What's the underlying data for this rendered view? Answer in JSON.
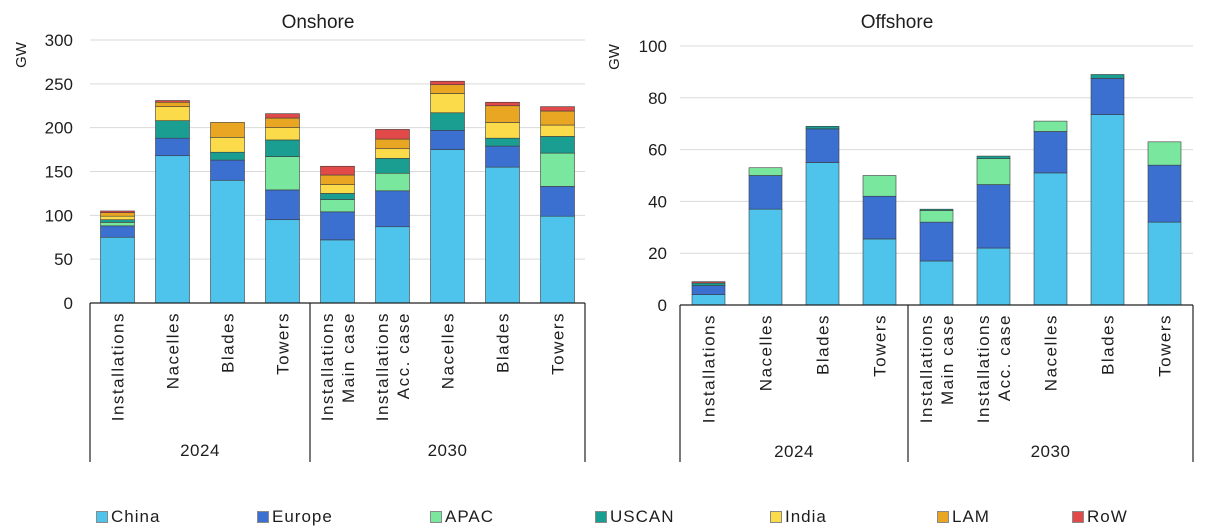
{
  "chart_data": [
    {
      "type": "bar",
      "stacked": true,
      "title": "Onshore",
      "ylabel": "GW",
      "ylim": [
        0,
        300
      ],
      "yticks": [
        0,
        50,
        100,
        150,
        200,
        250,
        300
      ],
      "grid": true,
      "legend": "bottom",
      "categories": [
        [
          "Installations"
        ],
        [
          "Nacelles"
        ],
        [
          "Blades"
        ],
        [
          "Towers"
        ],
        [
          "Installations",
          "Main case"
        ],
        [
          "Installations",
          "Acc. case"
        ],
        [
          "Nacelles"
        ],
        [
          "Blades"
        ],
        [
          "Towers"
        ]
      ],
      "groups": [
        {
          "label": "2024",
          "span": 4
        },
        {
          "label": "2030",
          "span": 5
        }
      ],
      "series": [
        {
          "name": "China",
          "color": "#4EC3EC",
          "values": [
            75,
            168,
            140,
            95,
            72,
            87,
            175,
            155,
            99
          ]
        },
        {
          "name": "Europe",
          "color": "#3B6FD0",
          "values": [
            13,
            20,
            23,
            34,
            32,
            41,
            22,
            24,
            34
          ]
        },
        {
          "name": "APAC",
          "color": "#7AE79E",
          "values": [
            4,
            0,
            0,
            38,
            14,
            20,
            0,
            0,
            38
          ]
        },
        {
          "name": "USCAN",
          "color": "#1A9E91",
          "values": [
            3,
            20,
            9,
            19,
            7,
            17,
            20,
            9,
            19
          ]
        },
        {
          "name": "India",
          "color": "#FBDB4A",
          "values": [
            4,
            16,
            17,
            14,
            10,
            11,
            22,
            18,
            13
          ]
        },
        {
          "name": "LAM",
          "color": "#E8A623",
          "values": [
            4,
            5,
            17,
            11,
            11,
            11,
            10,
            19,
            16
          ]
        },
        {
          "name": "RoW",
          "color": "#E24A4A",
          "values": [
            2,
            2,
            0,
            5,
            10,
            11,
            4,
            4,
            5
          ]
        }
      ]
    },
    {
      "type": "bar",
      "stacked": true,
      "title": "Offshore",
      "ylabel": "GW",
      "ylim": [
        0,
        100
      ],
      "yticks": [
        0,
        20,
        40,
        60,
        80,
        100
      ],
      "grid": true,
      "legend": "bottom",
      "categories": [
        [
          "Installations"
        ],
        [
          "Nacelles"
        ],
        [
          "Blades"
        ],
        [
          "Towers"
        ],
        [
          "Installations",
          "Main case"
        ],
        [
          "Installations",
          "Acc. case"
        ],
        [
          "Nacelles"
        ],
        [
          "Blades"
        ],
        [
          "Towers"
        ]
      ],
      "groups": [
        {
          "label": "2024",
          "span": 4
        },
        {
          "label": "2030",
          "span": 5
        }
      ],
      "series": [
        {
          "name": "China",
          "color": "#4EC3EC",
          "values": [
            4,
            37,
            55,
            25.5,
            17,
            22,
            51,
            73.5,
            32
          ]
        },
        {
          "name": "Europe",
          "color": "#3B6FD0",
          "values": [
            3.5,
            13,
            13,
            16.5,
            15,
            24.5,
            16,
            14,
            22
          ]
        },
        {
          "name": "APAC",
          "color": "#7AE79E",
          "values": [
            0,
            3,
            0,
            8,
            4.5,
            10,
            4,
            0,
            9
          ]
        },
        {
          "name": "USCAN",
          "color": "#1A9E91",
          "values": [
            1,
            0,
            1,
            0,
            0.5,
            1,
            0,
            1.5,
            0
          ]
        },
        {
          "name": "India",
          "color": "#FBDB4A",
          "values": [
            0,
            0,
            0,
            0,
            0,
            0,
            0,
            0,
            0
          ]
        },
        {
          "name": "LAM",
          "color": "#E8A623",
          "values": [
            0,
            0,
            0,
            0,
            0,
            0,
            0,
            0,
            0
          ]
        },
        {
          "name": "RoW",
          "color": "#E24A4A",
          "values": [
            0.5,
            0,
            0,
            0,
            0,
            0,
            0,
            0,
            0
          ]
        }
      ]
    }
  ]
}
